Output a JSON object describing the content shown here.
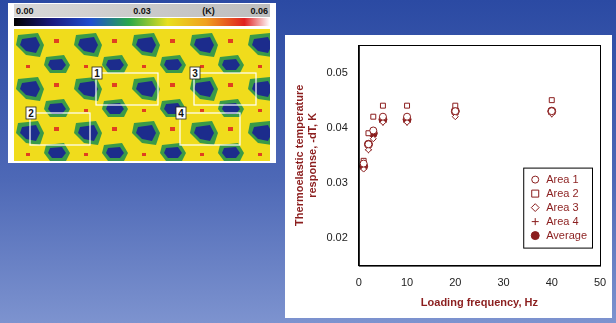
{
  "chart_data": {
    "type": "scatter",
    "x": [
      1,
      2,
      3,
      5,
      10,
      20,
      40
    ],
    "series": [
      {
        "name": "Area 1",
        "color": "#8b1e1e",
        "marker": "circle",
        "values": [
          0.0335,
          0.037,
          0.0395,
          0.042,
          0.042,
          0.043,
          0.043
        ]
      },
      {
        "name": "Area 2",
        "color": "#8b1e1e",
        "marker": "square",
        "values": [
          0.034,
          0.039,
          0.042,
          0.044,
          0.044,
          0.044,
          0.045
        ]
      },
      {
        "name": "Area 3",
        "color": "#8b1e1e",
        "marker": "diamond",
        "values": [
          0.0325,
          0.036,
          0.038,
          0.041,
          0.041,
          0.042,
          0.0425
        ]
      },
      {
        "name": "Area 4",
        "color": "#8b1e1e",
        "marker": "cross",
        "values": [
          0.033,
          0.036,
          0.0385,
          0.041,
          0.041,
          0.0425,
          0.0425
        ]
      },
      {
        "name": "Average",
        "color": "#8b1e1e",
        "marker": "filled_circle",
        "values": [
          0.033,
          0.037,
          0.039,
          0.0415,
          0.0415,
          0.043,
          0.043
        ]
      }
    ],
    "xlabel": "Loading frequency, Hz",
    "ylabel": "Thermoelastic temperature response, -dT, K",
    "xlim": [
      0,
      50
    ],
    "xticks": [
      0,
      10,
      20,
      30,
      40,
      50
    ],
    "ylim": [
      0.015,
      0.055
    ],
    "yticks": [
      0.02,
      0.03,
      0.04,
      0.05
    ],
    "grid": false,
    "legend": "lower right"
  },
  "thermal_image": {
    "colorbar": {
      "range": [
        0,
        0.06
      ],
      "ticks": [
        {
          "value": 0,
          "label": "0.00"
        },
        {
          "value": 0.03,
          "label": "0.03"
        },
        {
          "value": 0.06,
          "label": "0.06"
        }
      ],
      "unit": "(K)"
    },
    "areas": [
      "1",
      "2",
      "3",
      "4"
    ]
  }
}
